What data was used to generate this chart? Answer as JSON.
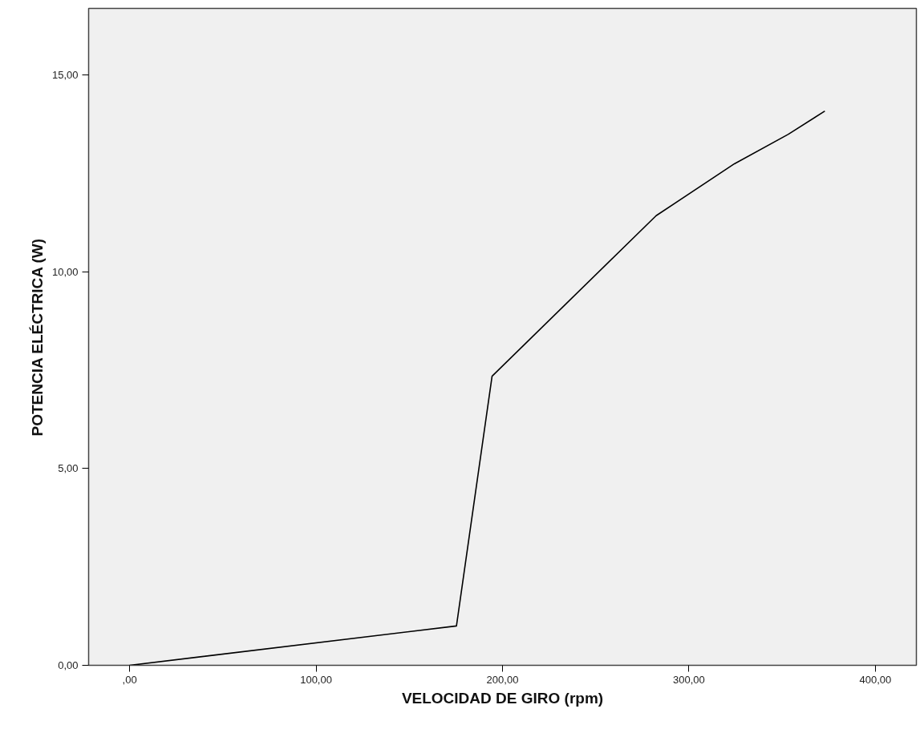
{
  "chart_data": {
    "type": "line",
    "xlabel": "VELOCIDAD DE GIRO (rpm)",
    "ylabel": "POTENCIA ELÉCTRICA (W)",
    "x": [
      0,
      175.3,
      194.4,
      282.4,
      324.4,
      353.3,
      372.9
    ],
    "series": [
      {
        "color": "#000000",
        "values": [
          0,
          1.0,
          7.35,
          11.43,
          12.75,
          13.5,
          14.09
        ]
      }
    ],
    "xlim": [
      -22,
      422
    ],
    "ylim": [
      0,
      16.7
    ],
    "xticks": [
      {
        "value": 0,
        "label": ",00"
      },
      {
        "value": 100,
        "label": "100,00"
      },
      {
        "value": 200,
        "label": "200,00"
      },
      {
        "value": 300,
        "label": "300,00"
      },
      {
        "value": 400,
        "label": "400,00"
      }
    ],
    "yticks": [
      {
        "value": 0,
        "label": "0,00"
      },
      {
        "value": 5,
        "label": "5,00"
      },
      {
        "value": 10,
        "label": "10,00"
      },
      {
        "value": 15,
        "label": "15,00"
      }
    ],
    "grid": false,
    "marker": "none",
    "line_style": "solid"
  }
}
